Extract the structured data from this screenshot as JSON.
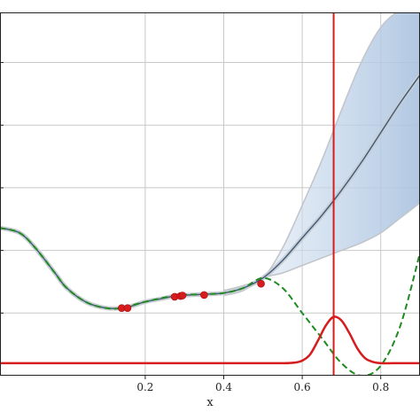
{
  "chart_data": {
    "type": "line",
    "title": "",
    "xlabel": "x",
    "ylabel": "",
    "xlim": [
      -0.17,
      0.9
    ],
    "ylim": [
      -0.25,
      1.2
    ],
    "grid": true,
    "x_ticks": [
      0.2,
      0.4,
      0.6,
      0.8
    ],
    "x_tick_labels": [
      "0.2",
      "0.4",
      "0.6",
      "0.8"
    ],
    "y_ticks": [
      0.0,
      0.25,
      0.5,
      0.75,
      1.0
    ],
    "series": [
      {
        "style": "mean-line",
        "color": "#3c5a7a",
        "x": [
          -0.17,
          -0.12,
          -0.08,
          -0.03,
          0.0,
          0.05,
          0.1,
          0.14,
          0.17,
          0.2,
          0.25,
          0.28,
          0.31,
          0.35,
          0.4,
          0.45,
          0.5,
          0.55,
          0.6,
          0.65,
          0.7,
          0.75,
          0.8,
          0.85,
          0.9
        ],
        "y": [
          0.34,
          0.32,
          0.26,
          0.16,
          0.1,
          0.043,
          0.02,
          0.02,
          0.03,
          0.045,
          0.06,
          0.07,
          0.072,
          0.075,
          0.08,
          0.1,
          0.14,
          0.21,
          0.3,
          0.39,
          0.49,
          0.6,
          0.72,
          0.84,
          0.95
        ]
      },
      {
        "style": "confidence-band",
        "color": "#b9cde4",
        "x": [
          0.4,
          0.45,
          0.5,
          0.55,
          0.6,
          0.65,
          0.7,
          0.75,
          0.8,
          0.85,
          0.9
        ],
        "upper": [
          0.09,
          0.11,
          0.14,
          0.26,
          0.43,
          0.61,
          0.81,
          1.0,
          1.14,
          1.21,
          1.24
        ],
        "lower": [
          0.07,
          0.09,
          0.14,
          0.16,
          0.19,
          0.22,
          0.25,
          0.28,
          0.32,
          0.38,
          0.44
        ]
      },
      {
        "style": "dashed",
        "color": "#1f8a1f",
        "x": [
          -0.17,
          -0.12,
          -0.08,
          -0.03,
          0.0,
          0.05,
          0.1,
          0.14,
          0.2,
          0.28,
          0.35,
          0.4,
          0.45,
          0.5,
          0.55,
          0.6,
          0.65,
          0.7,
          0.75,
          0.8,
          0.85,
          0.9
        ],
        "y": [
          0.34,
          0.32,
          0.26,
          0.16,
          0.1,
          0.043,
          0.02,
          0.02,
          0.045,
          0.07,
          0.075,
          0.08,
          0.1,
          0.14,
          0.1,
          0.0,
          -0.1,
          -0.2,
          -0.25,
          -0.21,
          -0.05,
          0.24
        ]
      },
      {
        "style": "solid",
        "color": "#d61c1c",
        "x": [
          -0.17,
          0.5,
          0.55,
          0.58,
          0.6,
          0.62,
          0.64,
          0.66,
          0.68,
          0.7,
          0.72,
          0.74,
          0.76,
          0.78,
          0.8,
          0.85,
          0.9
        ],
        "y": [
          -0.2,
          -0.2,
          -0.2,
          -0.198,
          -0.19,
          -0.165,
          -0.11,
          -0.05,
          -0.015,
          -0.03,
          -0.08,
          -0.14,
          -0.18,
          -0.195,
          -0.2,
          -0.2,
          -0.2
        ]
      }
    ],
    "observations": {
      "color": "#d61c1c",
      "x": [
        0.14,
        0.155,
        0.275,
        0.29,
        0.295,
        0.35,
        0.495
      ],
      "y": [
        0.02,
        0.02,
        0.065,
        0.068,
        0.07,
        0.072,
        0.117
      ]
    },
    "vertical_line": {
      "x": 0.68,
      "color": "#d61c1c"
    }
  }
}
